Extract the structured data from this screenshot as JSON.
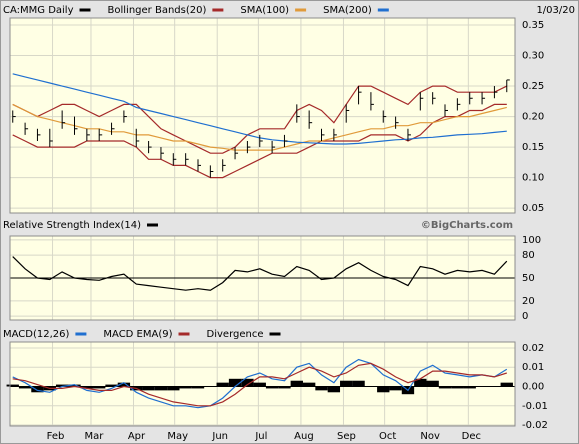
{
  "chart_data": [
    {
      "type": "ohlc",
      "title": "CA:MMG Daily",
      "date": "1/03/20",
      "color": "#000000",
      "x": [
        2,
        11,
        20,
        29,
        38,
        47,
        56,
        65,
        74,
        83,
        92,
        101,
        110,
        119,
        128,
        137,
        146,
        155,
        164,
        173,
        182,
        191,
        200,
        209,
        218,
        227,
        236,
        245,
        254,
        263,
        272,
        281,
        290,
        299,
        308,
        317,
        326,
        335,
        344,
        353,
        362
      ],
      "xlim": [
        0,
        368
      ],
      "high": [
        0.21,
        0.19,
        0.18,
        0.18,
        0.21,
        0.2,
        0.18,
        0.18,
        0.19,
        0.21,
        0.18,
        0.16,
        0.15,
        0.14,
        0.14,
        0.13,
        0.12,
        0.13,
        0.15,
        0.16,
        0.17,
        0.16,
        0.17,
        0.22,
        0.21,
        0.18,
        0.18,
        0.22,
        0.25,
        0.24,
        0.21,
        0.2,
        0.18,
        0.24,
        0.24,
        0.22,
        0.23,
        0.24,
        0.24,
        0.25,
        0.26
      ],
      "low": [
        0.19,
        0.17,
        0.16,
        0.15,
        0.18,
        0.17,
        0.16,
        0.16,
        0.17,
        0.19,
        0.15,
        0.14,
        0.13,
        0.12,
        0.12,
        0.11,
        0.1,
        0.11,
        0.13,
        0.14,
        0.15,
        0.14,
        0.15,
        0.19,
        0.18,
        0.16,
        0.16,
        0.19,
        0.22,
        0.21,
        0.19,
        0.18,
        0.16,
        0.21,
        0.22,
        0.2,
        0.21,
        0.22,
        0.22,
        0.23,
        0.24
      ],
      "close": [
        0.2,
        0.18,
        0.17,
        0.16,
        0.19,
        0.18,
        0.17,
        0.17,
        0.18,
        0.2,
        0.16,
        0.15,
        0.14,
        0.13,
        0.13,
        0.12,
        0.11,
        0.12,
        0.14,
        0.15,
        0.16,
        0.15,
        0.16,
        0.2,
        0.19,
        0.17,
        0.17,
        0.21,
        0.24,
        0.22,
        0.2,
        0.19,
        0.17,
        0.23,
        0.23,
        0.21,
        0.22,
        0.23,
        0.23,
        0.24,
        0.26
      ],
      "series": [
        {
          "name": "Bollinger Bands(20)",
          "color": "#a52a2a",
          "upper": [
            0.22,
            0.21,
            0.2,
            0.21,
            0.22,
            0.22,
            0.21,
            0.2,
            0.21,
            0.22,
            0.22,
            0.2,
            0.18,
            0.17,
            0.16,
            0.15,
            0.14,
            0.14,
            0.15,
            0.17,
            0.18,
            0.18,
            0.18,
            0.21,
            0.22,
            0.21,
            0.19,
            0.22,
            0.25,
            0.25,
            0.24,
            0.23,
            0.22,
            0.24,
            0.25,
            0.25,
            0.24,
            0.24,
            0.24,
            0.24,
            0.25
          ],
          "lower": [
            0.17,
            0.16,
            0.15,
            0.15,
            0.15,
            0.15,
            0.16,
            0.16,
            0.16,
            0.16,
            0.15,
            0.13,
            0.13,
            0.12,
            0.12,
            0.11,
            0.1,
            0.1,
            0.11,
            0.12,
            0.13,
            0.14,
            0.14,
            0.14,
            0.15,
            0.16,
            0.16,
            0.16,
            0.16,
            0.17,
            0.17,
            0.17,
            0.16,
            0.17,
            0.19,
            0.2,
            0.2,
            0.21,
            0.21,
            0.22,
            0.22
          ]
        },
        {
          "name": "SMA(100)",
          "color": "#e09a3a",
          "values": [
            0.22,
            0.21,
            0.2,
            0.195,
            0.19,
            0.185,
            0.18,
            0.18,
            0.175,
            0.175,
            0.17,
            0.17,
            0.165,
            0.16,
            0.16,
            0.155,
            0.15,
            0.148,
            0.145,
            0.145,
            0.145,
            0.145,
            0.15,
            0.155,
            0.16,
            0.16,
            0.165,
            0.17,
            0.175,
            0.18,
            0.18,
            0.185,
            0.185,
            0.19,
            0.19,
            0.195,
            0.2,
            0.2,
            0.205,
            0.21,
            0.215
          ]
        },
        {
          "name": "SMA(200)",
          "color": "#1f6fd0",
          "values": [
            0.27,
            0.265,
            0.26,
            0.255,
            0.25,
            0.245,
            0.24,
            0.235,
            0.23,
            0.225,
            0.215,
            0.21,
            0.205,
            0.2,
            0.195,
            0.19,
            0.185,
            0.18,
            0.175,
            0.17,
            0.165,
            0.162,
            0.16,
            0.158,
            0.157,
            0.156,
            0.155,
            0.155,
            0.156,
            0.158,
            0.16,
            0.162,
            0.163,
            0.165,
            0.166,
            0.168,
            0.17,
            0.171,
            0.172,
            0.174,
            0.176
          ]
        }
      ],
      "ylim": [
        0.042,
        0.3615
      ],
      "yticks": [
        0.35,
        {
          "value": 0.3,
          "label": "0.30"
        },
        0.25,
        {
          "value": 0.2,
          "label": "0.20"
        },
        0.15,
        {
          "value": 0.1,
          "label": "0.10"
        },
        0.05
      ],
      "grid": true
    },
    {
      "type": "line",
      "title": "Relative Strength Index(14)",
      "credit": "©BigCharts.com",
      "color": "#000000",
      "values": [
        78,
        62,
        50,
        48,
        58,
        50,
        48,
        47,
        52,
        55,
        42,
        40,
        38,
        36,
        34,
        36,
        34,
        44,
        60,
        58,
        62,
        55,
        52,
        65,
        60,
        48,
        50,
        62,
        70,
        60,
        52,
        48,
        40,
        65,
        62,
        55,
        60,
        58,
        60,
        55,
        72
      ],
      "ylim": [
        -5,
        105
      ],
      "yticks": [
        100,
        80,
        50,
        20,
        0
      ],
      "reference_line": 50,
      "grid": true
    },
    {
      "type": "macd",
      "series": [
        {
          "name": "MACD(12,26)",
          "color": "#1f6fd0",
          "kind": "line",
          "values": [
            0.005,
            0.002,
            -0.002,
            -0.003,
            0.0,
            0.001,
            -0.002,
            -0.003,
            -0.001,
            0.002,
            -0.003,
            -0.006,
            -0.008,
            -0.01,
            -0.01,
            -0.011,
            -0.01,
            -0.006,
            0.0,
            0.005,
            0.007,
            0.004,
            0.003,
            0.01,
            0.012,
            0.006,
            0.002,
            0.01,
            0.014,
            0.012,
            0.006,
            0.003,
            -0.002,
            0.008,
            0.011,
            0.007,
            0.006,
            0.005,
            0.006,
            0.005,
            0.009
          ]
        },
        {
          "name": "MACD EMA(9)",
          "color": "#a52a2a",
          "kind": "line",
          "values": [
            0.004,
            0.003,
            0.001,
            -0.001,
            -0.001,
            0.0,
            -0.001,
            -0.002,
            -0.002,
            0.0,
            -0.001,
            -0.004,
            -0.006,
            -0.008,
            -0.009,
            -0.01,
            -0.01,
            -0.008,
            -0.004,
            0.001,
            0.005,
            0.005,
            0.004,
            0.007,
            0.01,
            0.008,
            0.005,
            0.007,
            0.011,
            0.012,
            0.009,
            0.005,
            0.002,
            0.004,
            0.008,
            0.008,
            0.007,
            0.006,
            0.006,
            0.005,
            0.007
          ]
        },
        {
          "name": "Divergence",
          "color": "#000000",
          "kind": "bars",
          "values": [
            0.001,
            -0.001,
            -0.003,
            -0.002,
            0.001,
            0.001,
            -0.001,
            -0.001,
            0.001,
            0.002,
            -0.002,
            -0.002,
            -0.002,
            -0.002,
            -0.001,
            -0.001,
            0.0,
            0.002,
            0.004,
            0.004,
            0.002,
            -0.001,
            -0.001,
            0.003,
            0.002,
            -0.002,
            -0.003,
            0.003,
            0.003,
            0.0,
            -0.003,
            -0.002,
            -0.004,
            0.004,
            0.003,
            -0.001,
            -0.001,
            -0.001,
            0.0,
            0.0,
            0.002
          ]
        }
      ],
      "ylim": [
        -0.0205,
        0.0231
      ],
      "yticks": [
        0.02,
        0.01,
        {
          "value": 0,
          "label": "0.00"
        },
        -0.01,
        -0.02
      ],
      "reference_line": 0,
      "xticks": [
        {
          "value": 31,
          "label": "Feb"
        },
        {
          "value": 59,
          "label": "Mar"
        },
        {
          "value": 90,
          "label": "Apr"
        },
        {
          "value": 120,
          "label": "May"
        },
        {
          "value": 151,
          "label": "Jun"
        },
        {
          "value": 181,
          "label": "Jul"
        },
        {
          "value": 212,
          "label": "Aug"
        },
        {
          "value": 243,
          "label": "Sep"
        },
        {
          "value": 273,
          "label": "Oct"
        },
        {
          "value": 304,
          "label": "Nov"
        },
        {
          "value": 334,
          "label": "Dec"
        }
      ],
      "grid": true
    }
  ]
}
